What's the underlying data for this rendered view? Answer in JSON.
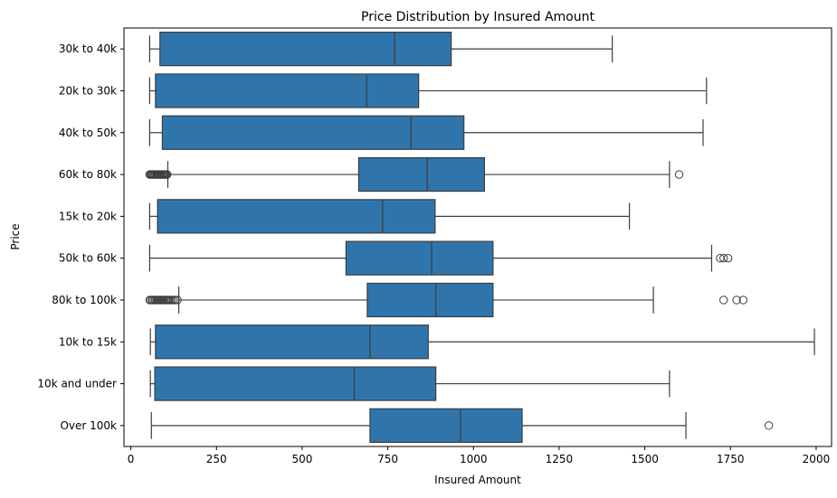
{
  "chart_data": {
    "type": "boxplot",
    "orientation": "horizontal",
    "title": "Price Distribution by Insured Amount",
    "xlabel": "Insured Amount",
    "ylabel": "Price",
    "xlim": [
      -20,
      2045
    ],
    "xticks": [
      0,
      250,
      500,
      750,
      1000,
      1250,
      1500,
      1750,
      2000
    ],
    "grid": false,
    "box_color": "#2f75ac",
    "line_color": "#3d3d3d",
    "categories": [
      "30k to 40k",
      "20k to 30k",
      "40k to 50k",
      "60k to 80k",
      "15k to 20k",
      "50k to 60k",
      "80k to 100k",
      "10k to 15k",
      "10k and under",
      "Over 100k"
    ],
    "boxes": [
      {
        "category": "30k to 40k",
        "whisker_low": 55,
        "q1": 85,
        "median": 770,
        "q3": 935,
        "whisker_high": 1405,
        "outliers": []
      },
      {
        "category": "20k to 30k",
        "whisker_low": 55,
        "q1": 72,
        "median": 688,
        "q3": 840,
        "whisker_high": 1680,
        "outliers": []
      },
      {
        "category": "40k to 50k",
        "whisker_low": 55,
        "q1": 92,
        "median": 818,
        "q3": 972,
        "whisker_high": 1670,
        "outliers": []
      },
      {
        "category": "60k to 80k",
        "whisker_low": 108,
        "q1": 665,
        "median": 865,
        "q3": 1032,
        "whisker_high": 1572,
        "outliers": [
          55,
          58,
          61,
          64,
          67,
          70,
          73,
          76,
          79,
          82,
          85,
          88,
          91,
          94,
          97,
          100,
          103,
          106,
          1600
        ]
      },
      {
        "category": "15k to 20k",
        "whisker_low": 55,
        "q1": 78,
        "median": 735,
        "q3": 888,
        "whisker_high": 1455,
        "outliers": []
      },
      {
        "category": "50k to 60k",
        "whisker_low": 55,
        "q1": 628,
        "median": 878,
        "q3": 1057,
        "whisker_high": 1695,
        "outliers": [
          1720,
          1730,
          1743
        ]
      },
      {
        "category": "80k to 100k",
        "whisker_low": 140,
        "q1": 690,
        "median": 890,
        "q3": 1057,
        "whisker_high": 1525,
        "outliers": [
          55,
          59,
          63,
          67,
          71,
          75,
          79,
          83,
          87,
          91,
          95,
          99,
          103,
          107,
          111,
          115,
          120,
          125,
          130,
          136,
          1730,
          1768,
          1787
        ]
      },
      {
        "category": "10k to 15k",
        "whisker_low": 57,
        "q1": 72,
        "median": 698,
        "q3": 868,
        "whisker_high": 1995,
        "outliers": []
      },
      {
        "category": "10k and under",
        "whisker_low": 57,
        "q1": 70,
        "median": 652,
        "q3": 890,
        "whisker_high": 1572,
        "outliers": []
      },
      {
        "category": "Over 100k",
        "whisker_low": 60,
        "q1": 698,
        "median": 962,
        "q3": 1142,
        "whisker_high": 1620,
        "outliers": [
          1862
        ]
      }
    ]
  }
}
